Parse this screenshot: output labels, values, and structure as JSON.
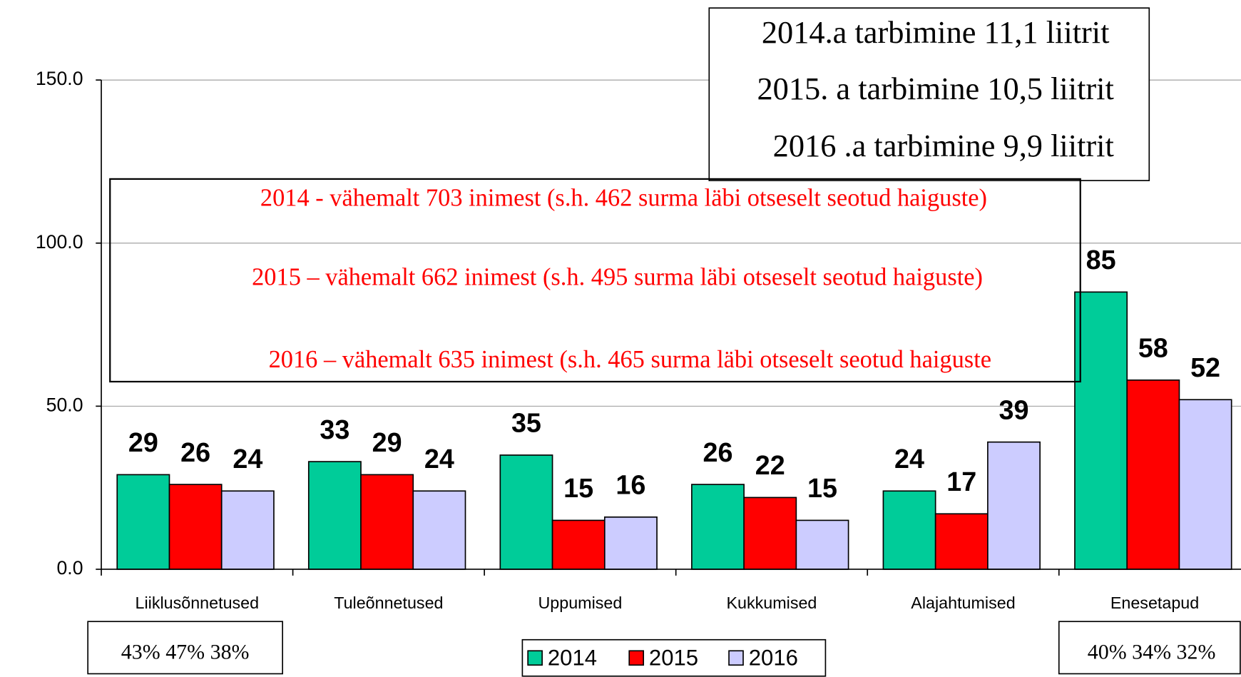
{
  "chart_data": {
    "type": "bar",
    "categories": [
      "Liiklusõnnetused",
      "Tuleõnnetused",
      "Uppumised",
      "Kukkumised",
      "Alajahtumised",
      "Enesetapud"
    ],
    "series": [
      {
        "name": "2014",
        "color": "#00cc99",
        "values": [
          29,
          33,
          35,
          26,
          24,
          85
        ]
      },
      {
        "name": "2015",
        "color": "#ff0000",
        "values": [
          26,
          29,
          15,
          22,
          17,
          58
        ]
      },
      {
        "name": "2016",
        "color": "#ccccff",
        "values": [
          24,
          24,
          16,
          15,
          39,
          52
        ]
      }
    ],
    "ylim": [
      0,
      150
    ],
    "yticks": [
      {
        "value": 0,
        "label": "0.0"
      },
      {
        "value": 50,
        "label": "50.0"
      },
      {
        "value": 100,
        "label": "100.0"
      },
      {
        "value": 150,
        "label": "150.0"
      }
    ],
    "grid": true,
    "consumption_notes": [
      "2014.a  tarbimine 11,1 liitrit",
      "2015. a tarbimine 10,5 liitrit",
      "2016 .a tarbimine 9,9 liitrit"
    ],
    "death_notes": [
      "2014  - vähemalt 703 inimest (s.h. 462 surma läbi otseselt seotud haiguste)",
      "2015 – vähemalt 662 inimest (s.h. 495 surma läbi otseselt seotud haiguste)",
      "2016 – vähemalt 635 inimest (s.h. 465 surma läbi otseselt seotud haiguste"
    ],
    "share_notes": [
      "43% 47%  38%",
      "40% 34%  32%"
    ]
  }
}
